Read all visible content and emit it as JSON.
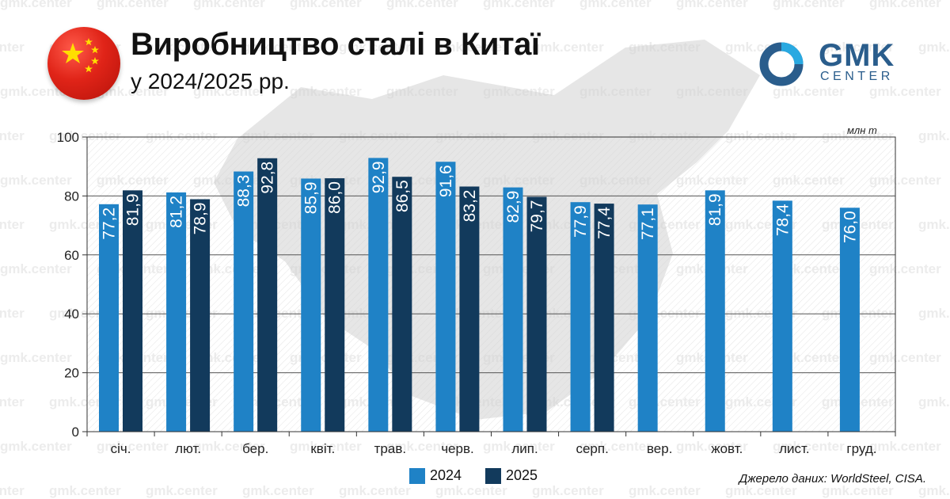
{
  "header": {
    "title": "Виробництво сталі в Китаї",
    "subtitle": "у 2024/2025 рр."
  },
  "logo": {
    "main": "GMK",
    "sub": "CENTER"
  },
  "watermark_text": "gmk.center",
  "source": "Джерело даних: WorldSteel, CISA.",
  "colors": {
    "series_2024": "#1f82c6",
    "series_2025": "#123a5c",
    "logo": "#2a5d8c",
    "logo_accent": "#29a9e1"
  },
  "chart_data": {
    "type": "bar",
    "unit": "млн т",
    "categories": [
      "січ.",
      "лют.",
      "бер.",
      "квіт.",
      "трав.",
      "черв.",
      "лип.",
      "серп.",
      "вер.",
      "жовт.",
      "лист.",
      "груд."
    ],
    "series": [
      {
        "name": "2024",
        "values": [
          77.2,
          81.2,
          88.3,
          85.9,
          92.9,
          91.6,
          82.9,
          77.9,
          77.1,
          81.9,
          78.4,
          76.0
        ],
        "labels": [
          "77,2",
          "81,2",
          "88,3",
          "85,9",
          "92,9",
          "91,6",
          "82,9",
          "77,9",
          "77,1",
          "81,9",
          "78,4",
          "76,0"
        ]
      },
      {
        "name": "2025",
        "values": [
          81.9,
          78.9,
          92.8,
          86.0,
          86.5,
          83.2,
          79.7,
          77.4,
          null,
          null,
          null,
          null
        ],
        "labels": [
          "81,9",
          "78,9",
          "92,8",
          "86,0",
          "86,5",
          "83,2",
          "79,7",
          "77,4",
          null,
          null,
          null,
          null
        ]
      }
    ],
    "yticks": [
      "0",
      "20",
      "40",
      "60",
      "80",
      "100"
    ],
    "ylim": [
      0,
      100
    ],
    "grid": true,
    "legend": "bottom-center"
  }
}
